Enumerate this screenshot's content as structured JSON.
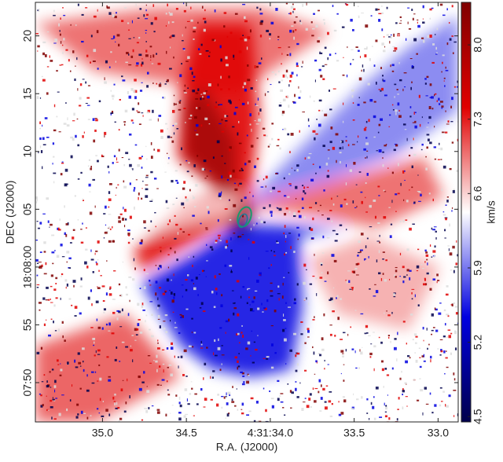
{
  "chart_data": {
    "type": "image",
    "xlabel": "R.A. (J2000)",
    "ylabel": "DEC (J2000)",
    "xlim": [
      35.4,
      32.88
    ],
    "xticks": [
      {
        "value": 35,
        "label": "35.0"
      },
      34.5,
      {
        "value": 34,
        "label": "4:31:34.0"
      },
      33.5,
      {
        "value": 33,
        "label": "33.0"
      }
    ],
    "ylim": [
      -13.4,
      22.9
    ],
    "yticks": [
      20,
      15,
      10,
      {
        "value": 5,
        "label": "05"
      },
      {
        "value": 0,
        "label": "18:08:00"
      },
      {
        "value": -5,
        "label": "55"
      },
      {
        "value": -10,
        "label": "07:50"
      }
    ],
    "colorbar": {
      "label": "km/s",
      "lim": [
        4.45,
        8.4
      ],
      "ticks": [
        4.5,
        5.2,
        5.9,
        6.6,
        7.3,
        {
          "value": 8,
          "label": "8.0"
        }
      ]
    },
    "colormap": [
      "#00004c",
      "#0000e0",
      "#ffffff",
      "#e00000",
      "#800000"
    ]
  }
}
